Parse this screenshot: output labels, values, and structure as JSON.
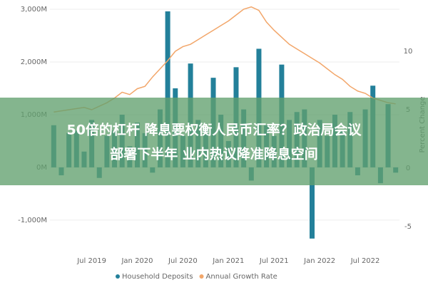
{
  "chart_data": {
    "type": "bar_line",
    "categories": [
      null,
      null,
      null,
      null,
      null,
      "Jul 2019",
      null,
      null,
      null,
      null,
      null,
      "Jan 2020",
      null,
      null,
      null,
      null,
      null,
      "Jul 2020",
      null,
      null,
      null,
      null,
      null,
      "Jan 2021",
      null,
      null,
      null,
      null,
      null,
      "Jul 2021",
      null,
      null,
      null,
      null,
      null,
      "Jan 2022",
      null,
      null,
      null,
      null,
      null,
      "Jul 2022",
      null,
      null,
      null,
      null
    ],
    "series": [
      {
        "name": "Household Deposits",
        "color": "#23809a",
        "kind": "bar",
        "axis": "y",
        "values": [
          800,
          -150,
          650,
          700,
          300,
          900,
          -200,
          600,
          700,
          1000,
          400,
          850,
          650,
          -100,
          1100,
          2960,
          1500,
          600,
          1970,
          900,
          750,
          1700,
          1000,
          500,
          1900,
          1100,
          -250,
          2250,
          800,
          600,
          1950,
          900,
          1050,
          1100,
          -1350,
          900,
          600,
          1000,
          700,
          1050,
          -150,
          1100,
          1550,
          -300,
          1200,
          -100
        ]
      },
      {
        "name": "Annual Growth Rate",
        "color": "#f2a66a",
        "kind": "line",
        "axis": "y2",
        "values": [
          4.8,
          4.9,
          5.0,
          5.1,
          5.2,
          5.0,
          5.3,
          5.6,
          6.0,
          6.5,
          6.3,
          6.8,
          7.0,
          7.8,
          8.5,
          9.2,
          10.0,
          10.4,
          10.6,
          11.0,
          11.4,
          11.8,
          12.2,
          12.6,
          13.1,
          13.6,
          13.8,
          13.5,
          12.5,
          11.8,
          11.2,
          10.6,
          10.2,
          9.8,
          9.4,
          9.0,
          8.5,
          8.0,
          7.6,
          7.0,
          6.6,
          6.4,
          6.0,
          5.8,
          5.6,
          5.5
        ]
      }
    ],
    "ylim": [
      -1420,
      3040
    ],
    "yticks": [
      {
        "value": -1000,
        "label": "-1,000M"
      },
      {
        "value": 0,
        "label": "0M"
      },
      {
        "value": 1000,
        "label": "1,000M"
      },
      {
        "value": 2000,
        "label": "2,000M"
      },
      {
        "value": 3000,
        "label": "3,000M"
      }
    ],
    "y2lim": [
      -6.34,
      13.78
    ],
    "y2ticks": [
      -5,
      0,
      5,
      10
    ],
    "y2_label": "Percent Change",
    "grid": true,
    "legend": "bottom",
    "overlay_text": [
      "50倍的杠杆 降息要权衡人民币汇率？政治局会议",
      "部署下半年 业内热议降准降息空间"
    ]
  }
}
